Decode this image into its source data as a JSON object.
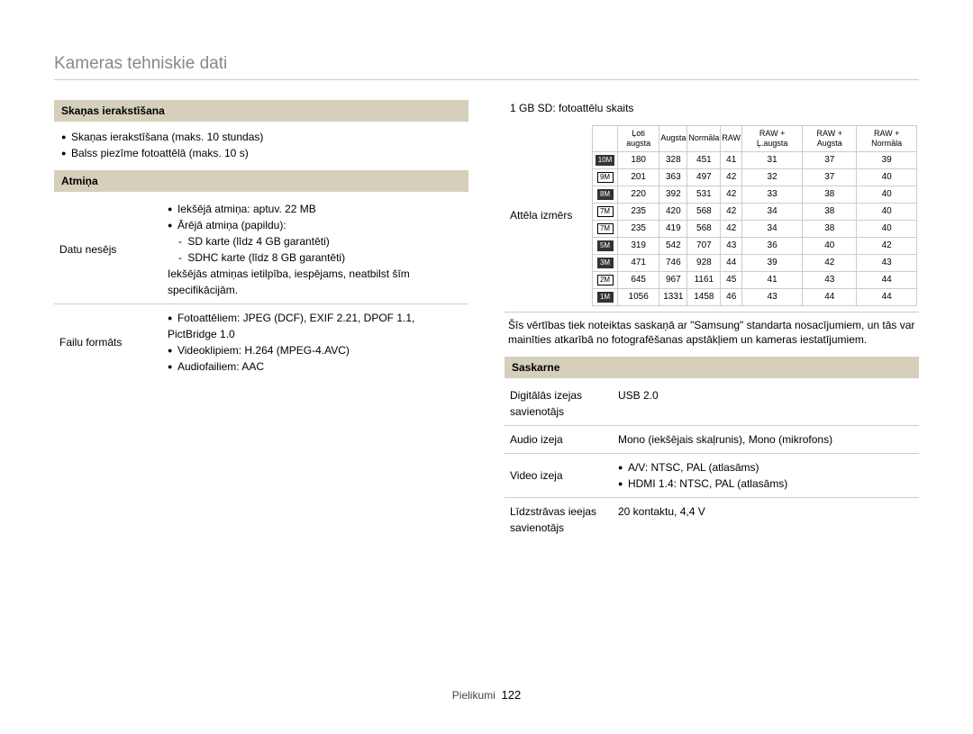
{
  "page_title": "Kameras tehniskie dati",
  "footer": {
    "label": "Pielikumi",
    "page": "122"
  },
  "left": {
    "sound": {
      "header": "Skaņas ierakstīšana",
      "items": [
        "Skaņas ierakstīšana (maks. 10 stundas)",
        "Balss piezīme fotoattēlā (maks. 10 s)"
      ]
    },
    "memory": {
      "header": "Atmiņa",
      "rows": [
        {
          "label": "Datu nesējs",
          "bullets": [
            "Iekšējā atmiņa: aptuv. 22 MB",
            "Ārējā atmiņa (papildu):"
          ],
          "dashes": [
            "SD karte (līdz 4 GB garantēti)",
            "SDHC karte (līdz 8 GB garantēti)"
          ],
          "note": "Iekšējās atmiņas ietilpība, iespējams, neatbilst šīm specifikācijām."
        },
        {
          "label": "Failu formāts",
          "bullets": [
            "Fotoattēliem: JPEG (DCF), EXIF 2.21, DPOF 1.1, PictBridge 1.0",
            "Videoklipiem: H.264 (MPEG-4.AVC)",
            "Audiofailiem: AAC"
          ]
        }
      ]
    }
  },
  "right": {
    "sd_title": "1 GB SD: fotoattēlu skaits",
    "image_size_label": "Attēla izmērs",
    "headers": [
      "Ļoti augsta",
      "Augsta",
      "Normāla",
      "RAW",
      "RAW + Ļ.augsta",
      "RAW + Augsta",
      "RAW + Normāla"
    ],
    "rows": [
      {
        "icon": "10M",
        "dark": true,
        "vals": [
          "180",
          "328",
          "451",
          "41",
          "31",
          "37",
          "39"
        ]
      },
      {
        "icon": "9M",
        "dark": false,
        "vals": [
          "201",
          "363",
          "497",
          "42",
          "32",
          "37",
          "40"
        ]
      },
      {
        "icon": "8M",
        "dark": true,
        "vals": [
          "220",
          "392",
          "531",
          "42",
          "33",
          "38",
          "40"
        ]
      },
      {
        "icon": "7M",
        "dark": false,
        "vals": [
          "235",
          "420",
          "568",
          "42",
          "34",
          "38",
          "40"
        ]
      },
      {
        "icon": "7M",
        "dark": false,
        "vals": [
          "235",
          "419",
          "568",
          "42",
          "34",
          "38",
          "40"
        ]
      },
      {
        "icon": "5M",
        "dark": true,
        "vals": [
          "319",
          "542",
          "707",
          "43",
          "36",
          "40",
          "42"
        ]
      },
      {
        "icon": "3M",
        "dark": true,
        "vals": [
          "471",
          "746",
          "928",
          "44",
          "39",
          "42",
          "43"
        ]
      },
      {
        "icon": "2M",
        "dark": false,
        "vals": [
          "645",
          "967",
          "1161",
          "45",
          "41",
          "43",
          "44"
        ]
      },
      {
        "icon": "1M",
        "dark": true,
        "vals": [
          "1056",
          "1331",
          "1458",
          "46",
          "43",
          "44",
          "44"
        ]
      }
    ],
    "disclaimer": "Šīs vērtības tiek noteiktas saskaņā ar \"Samsung\" standarta nosacījumiem, un tās var mainīties atkarībā no fotografēšanas apstākļiem un kameras iestatījumiem.",
    "interface": {
      "header": "Saskarne",
      "rows": [
        {
          "label": "Digitālās izejas savienotājs",
          "plain": "USB 2.0"
        },
        {
          "label": "Audio izeja",
          "plain": "Mono (iekšējais skaļrunis), Mono (mikrofons)"
        },
        {
          "label": "Video izeja",
          "bullets": [
            "A/V: NTSC, PAL (atlasāms)",
            "HDMI 1.4: NTSC, PAL (atlasāms)"
          ]
        },
        {
          "label": "Līdzstrāvas ieejas savienotājs",
          "plain": "20 kontaktu, 4,4 V"
        }
      ]
    }
  }
}
